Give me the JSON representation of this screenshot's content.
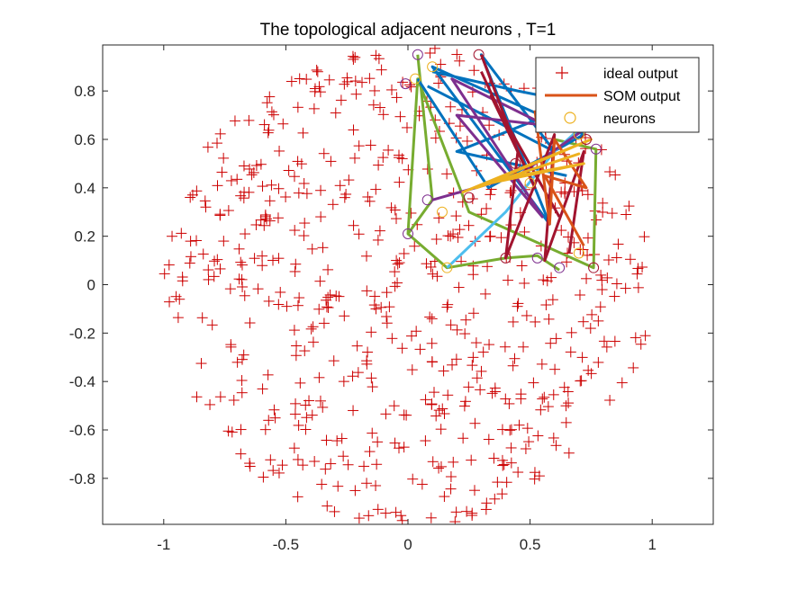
{
  "chart_data": {
    "type": "scatter",
    "title": "The topological adjacent neurons , T=1",
    "xlabel": "",
    "ylabel": "",
    "xlim": [
      -1.25,
      1.25
    ],
    "ylim": [
      -0.99,
      0.99
    ],
    "xticks": [
      -1,
      -0.5,
      0,
      0.5,
      1
    ],
    "xtick_labels": [
      "-1",
      "-0.5",
      "0",
      "0.5",
      "1"
    ],
    "yticks": [
      -0.8,
      -0.6,
      -0.4,
      -0.2,
      0,
      0.2,
      0.4,
      0.6,
      0.8
    ],
    "ytick_labels": [
      "-0.8",
      "-0.6",
      "-0.4",
      "-0.2",
      "0",
      "0.2",
      "0.4",
      "0.6",
      "0.8"
    ],
    "grid": false,
    "legend": {
      "position": "top-right",
      "entries": [
        {
          "label": "ideal output",
          "marker": "plus",
          "color": "#cc0000"
        },
        {
          "label": "SOM output",
          "marker": "line",
          "color": "#d95319"
        },
        {
          "label": "neurons",
          "marker": "circle",
          "color": "#edb120"
        }
      ]
    },
    "ideal_output": {
      "description": "points uniformly filling a disc of radius ~1",
      "count": 600,
      "radius": 1.0,
      "color": "#cc0000",
      "marker": "plus"
    },
    "neurons": {
      "points": [
        [
          0.04,
          0.95
        ],
        [
          0.1,
          0.9
        ],
        [
          0.29,
          0.95
        ],
        [
          -0.01,
          0.83
        ],
        [
          0.03,
          0.85
        ],
        [
          0.73,
          0.6
        ],
        [
          0.77,
          0.56
        ],
        [
          0.7,
          0.62
        ],
        [
          0.44,
          0.5
        ],
        [
          0.08,
          0.35
        ],
        [
          0.14,
          0.3
        ],
        [
          0.25,
          0.36
        ],
        [
          0.0,
          0.21
        ],
        [
          0.16,
          0.07
        ],
        [
          0.4,
          0.11
        ],
        [
          0.53,
          0.11
        ],
        [
          0.7,
          0.13
        ],
        [
          0.76,
          0.07
        ],
        [
          0.62,
          0.07
        ],
        [
          0.5,
          0.42
        ]
      ]
    },
    "series": [
      {
        "color": "#77ac30",
        "values": [
          [
            0.04,
            0.95
          ],
          [
            0.1,
            0.35
          ],
          [
            0.0,
            0.21
          ],
          [
            0.04,
            0.85
          ],
          [
            0.25,
            0.3
          ],
          [
            0.76,
            0.07
          ],
          [
            0.77,
            0.56
          ],
          [
            0.6,
            0.6
          ]
        ]
      },
      {
        "color": "#77ac30",
        "values": [
          [
            0.0,
            0.21
          ],
          [
            0.16,
            0.07
          ],
          [
            0.4,
            0.11
          ],
          [
            0.53,
            0.12
          ],
          [
            0.62,
            0.06
          ]
        ]
      },
      {
        "color": "#0072bd",
        "values": [
          [
            0.04,
            0.85
          ],
          [
            0.33,
            0.4
          ],
          [
            0.72,
            0.62
          ],
          [
            0.1,
            0.9
          ],
          [
            0.58,
            0.25
          ],
          [
            0.3,
            0.95
          ],
          [
            0.6,
            0.55
          ],
          [
            0.08,
            0.82
          ]
        ]
      },
      {
        "color": "#0072bd",
        "values": [
          [
            0.1,
            0.88
          ],
          [
            0.45,
            0.8
          ],
          [
            0.7,
            0.75
          ],
          [
            0.2,
            0.55
          ],
          [
            0.65,
            0.45
          ]
        ]
      },
      {
        "color": "#4dbeee",
        "values": [
          [
            0.16,
            0.07
          ],
          [
            0.4,
            0.3
          ],
          [
            0.6,
            0.55
          ],
          [
            0.72,
            0.66
          ]
        ]
      },
      {
        "color": "#7e2f8e",
        "values": [
          [
            0.1,
            0.35
          ],
          [
            0.45,
            0.45
          ],
          [
            0.72,
            0.64
          ],
          [
            0.2,
            0.7
          ],
          [
            0.55,
            0.28
          ],
          [
            0.18,
            0.85
          ],
          [
            0.58,
            0.65
          ]
        ]
      },
      {
        "color": "#a2142f",
        "values": [
          [
            0.3,
            0.95
          ],
          [
            0.45,
            0.55
          ],
          [
            0.4,
            0.11
          ],
          [
            0.6,
            0.62
          ],
          [
            0.56,
            0.1
          ],
          [
            0.72,
            0.55
          ],
          [
            0.66,
            0.13
          ]
        ]
      },
      {
        "color": "#a2142f",
        "values": [
          [
            0.3,
            0.88
          ],
          [
            0.52,
            0.4
          ],
          [
            0.34,
            0.78
          ],
          [
            0.62,
            0.28
          ]
        ]
      },
      {
        "color": "#d95319",
        "values": [
          [
            0.52,
            0.72
          ],
          [
            0.58,
            0.25
          ],
          [
            0.6,
            0.6
          ],
          [
            0.73,
            0.4
          ],
          [
            0.56,
            0.45
          ],
          [
            0.72,
            0.16
          ]
        ]
      },
      {
        "color": "#edb120",
        "values": [
          [
            0.22,
            0.38
          ],
          [
            0.75,
            0.6
          ],
          [
            0.28,
            0.4
          ],
          [
            0.7,
            0.54
          ],
          [
            0.34,
            0.42
          ],
          [
            0.72,
            0.5
          ],
          [
            0.4,
            0.44
          ]
        ]
      }
    ]
  }
}
